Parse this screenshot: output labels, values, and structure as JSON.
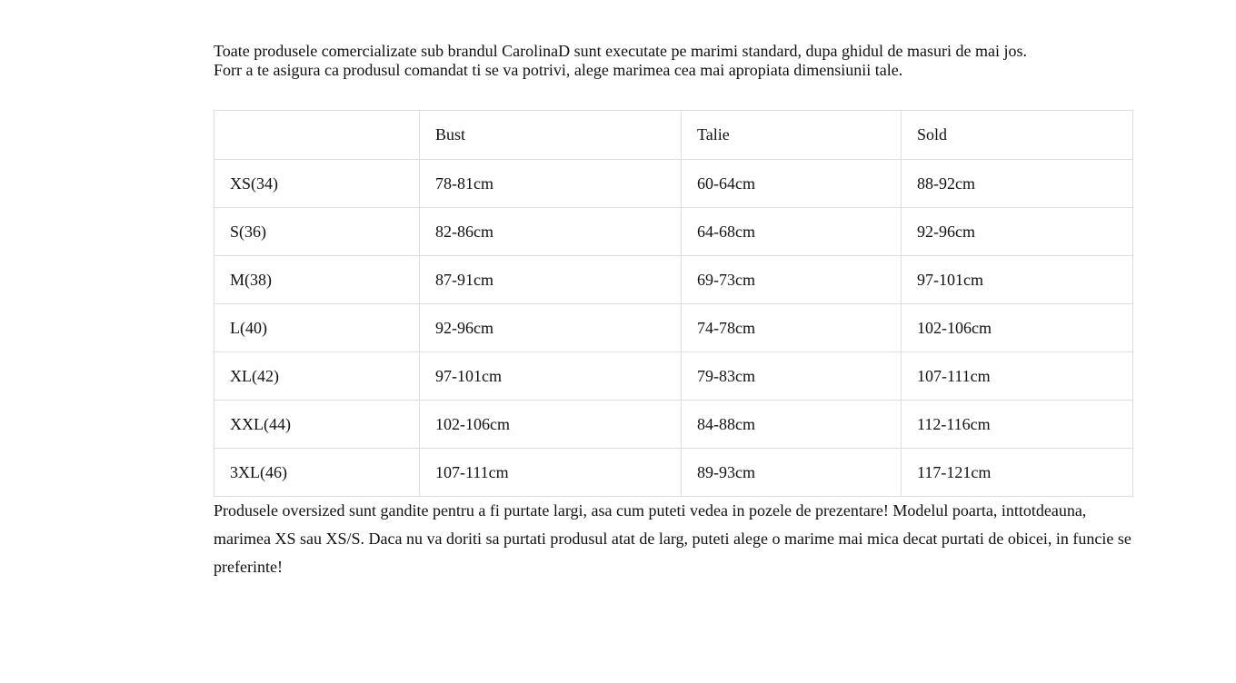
{
  "intro_paragraphs": [
    "Toate produsele comercializate sub brandul CarolinaD sunt executate pe marimi standard, dupa ghidul de masuri de mai jos.",
    "Forr a te asigura ca produsul comandat ti se va potrivi, alege marimea cea mai apropiata dimensiunii tale."
  ],
  "size_table": {
    "columns": [
      "",
      "Bust",
      "Talie",
      "Sold"
    ],
    "rows": [
      {
        "size": "XS(34)",
        "bust": "78-81cm",
        "talie": "60-64cm",
        "sold": "88-92cm"
      },
      {
        "size": "S(36)",
        "bust": "82-86cm",
        "talie": "64-68cm",
        "sold": "92-96cm"
      },
      {
        "size": "M(38)",
        "bust": "87-91cm",
        "talie": "69-73cm",
        "sold": "97-101cm"
      },
      {
        "size": "L(40)",
        "bust": "92-96cm",
        "talie": "74-78cm",
        "sold": "102-106cm"
      },
      {
        "size": "XL(42)",
        "bust": "97-101cm",
        "talie": "79-83cm",
        "sold": "107-111cm"
      },
      {
        "size": "XXL(44)",
        "bust": "102-106cm",
        "talie": "84-88cm",
        "sold": "112-116cm"
      },
      {
        "size": "3XL(46)",
        "bust": "107-111cm",
        "talie": "89-93cm",
        "sold": "117-121cm"
      }
    ]
  },
  "footer_paragraph": "Produsele oversized sunt gandite pentru a fi purtate largi, asa cum puteti vedea in pozele de prezentare! Modelul poarta, inttotdeauna, marimea XS sau XS/S. Daca nu va doriti sa purtati produsul atat de larg, puteti alege o marime mai mica decat purtati de obicei, in funcie se preferinte!",
  "colors": {
    "background": "#ffffff",
    "text": "#111111",
    "table_border": "#dddddd"
  }
}
